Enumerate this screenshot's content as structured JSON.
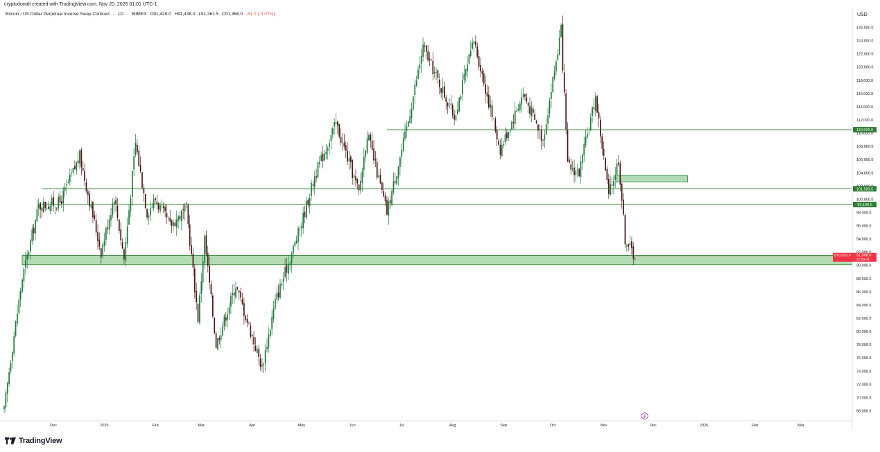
{
  "header": {
    "created_note": "cryptodonalt created with TradingView.com, Nov 20, 2025 01:01 UTC-1",
    "symbol": "Bitcoin / US Dollar Perpetual Inverse Swap Contract",
    "interval": "1D",
    "exchange": "BitMEX",
    "ohlc": {
      "open": "O91,429.0",
      "high": "H91,438.0",
      "low": "L91,361.5",
      "close": "C91,368.0",
      "change": "-61.0 (-0.07%)"
    },
    "currency": "USD"
  },
  "footer": {
    "brand": "TradingView"
  },
  "colors": {
    "up": "#26a69a",
    "down": "#ef5350",
    "zone": "#a5d6a7",
    "line": "#2e7d32",
    "price_tag": "#f23645",
    "level_tag": "#2e7d32"
  },
  "chart_data": {
    "type": "candlestick",
    "title": "",
    "x_labels": [
      "Dec",
      "2025",
      "Feb",
      "Mar",
      "Apr",
      "May",
      "Jun",
      "Jul",
      "Aug",
      "Sep",
      "Oct",
      "Nov",
      "Dec",
      "2026",
      "Feb",
      "Mar"
    ],
    "y_ticks": [
      126000,
      124000,
      122000,
      120000,
      118000,
      116000,
      114000,
      112000,
      110000,
      108000,
      106000,
      104000,
      102000,
      100000,
      98000,
      96000,
      94000,
      92000,
      90000,
      88000,
      86000,
      84000,
      82000,
      80000,
      78000,
      76000,
      74000,
      72000,
      70000,
      68000
    ],
    "y_range": [
      67000,
      127000
    ],
    "levels": [
      {
        "label": "110,520.0",
        "price": 110520
      },
      {
        "label": "101,583.5",
        "price": 101584
      },
      {
        "label": "99,199.0",
        "price": 99199
      }
    ],
    "zones": [
      {
        "from": 90100,
        "to": 91500,
        "scope": "full-width"
      },
      {
        "from": 102600,
        "to": 103600,
        "scope": "Nov-Dec"
      }
    ],
    "last_price": {
      "symbol": "BTCUSD.P",
      "value": "91,368.0",
      "countdown": "22:58:41"
    },
    "series_path": [
      [
        "2024-11-01",
        68000
      ],
      [
        "2024-11-05",
        76000
      ],
      [
        "2024-11-12",
        88000
      ],
      [
        "2024-11-22",
        99000
      ],
      [
        "2024-12-05",
        99500
      ],
      [
        "2024-12-17",
        106500
      ],
      [
        "2024-12-30",
        92000
      ],
      [
        "2025-01-07",
        100500
      ],
      [
        "2025-01-13",
        91000
      ],
      [
        "2025-01-20",
        108500
      ],
      [
        "2025-01-27",
        98000
      ],
      [
        "2025-02-01",
        100000
      ],
      [
        "2025-02-10",
        96000
      ],
      [
        "2025-02-20",
        98500
      ],
      [
        "2025-02-27",
        82000
      ],
      [
        "2025-03-03",
        94000
      ],
      [
        "2025-03-10",
        78000
      ],
      [
        "2025-03-22",
        87000
      ],
      [
        "2025-04-07",
        74500
      ],
      [
        "2025-04-15",
        84500
      ],
      [
        "2025-04-30",
        95500
      ],
      [
        "2025-05-09",
        103500
      ],
      [
        "2025-05-22",
        111500
      ],
      [
        "2025-06-05",
        101000
      ],
      [
        "2025-06-10",
        110000
      ],
      [
        "2025-06-22",
        98000
      ],
      [
        "2025-07-03",
        109500
      ],
      [
        "2025-07-14",
        123000
      ],
      [
        "2025-08-02",
        112500
      ],
      [
        "2025-08-14",
        124000
      ],
      [
        "2025-08-30",
        107500
      ],
      [
        "2025-09-13",
        116000
      ],
      [
        "2025-09-25",
        109000
      ],
      [
        "2025-10-06",
        125500
      ],
      [
        "2025-10-10",
        105000
      ],
      [
        "2025-10-17",
        104000
      ],
      [
        "2025-10-27",
        115500
      ],
      [
        "2025-11-04",
        100500
      ],
      [
        "2025-11-10",
        106000
      ],
      [
        "2025-11-14",
        94000
      ],
      [
        "2025-11-20",
        91368
      ]
    ]
  }
}
